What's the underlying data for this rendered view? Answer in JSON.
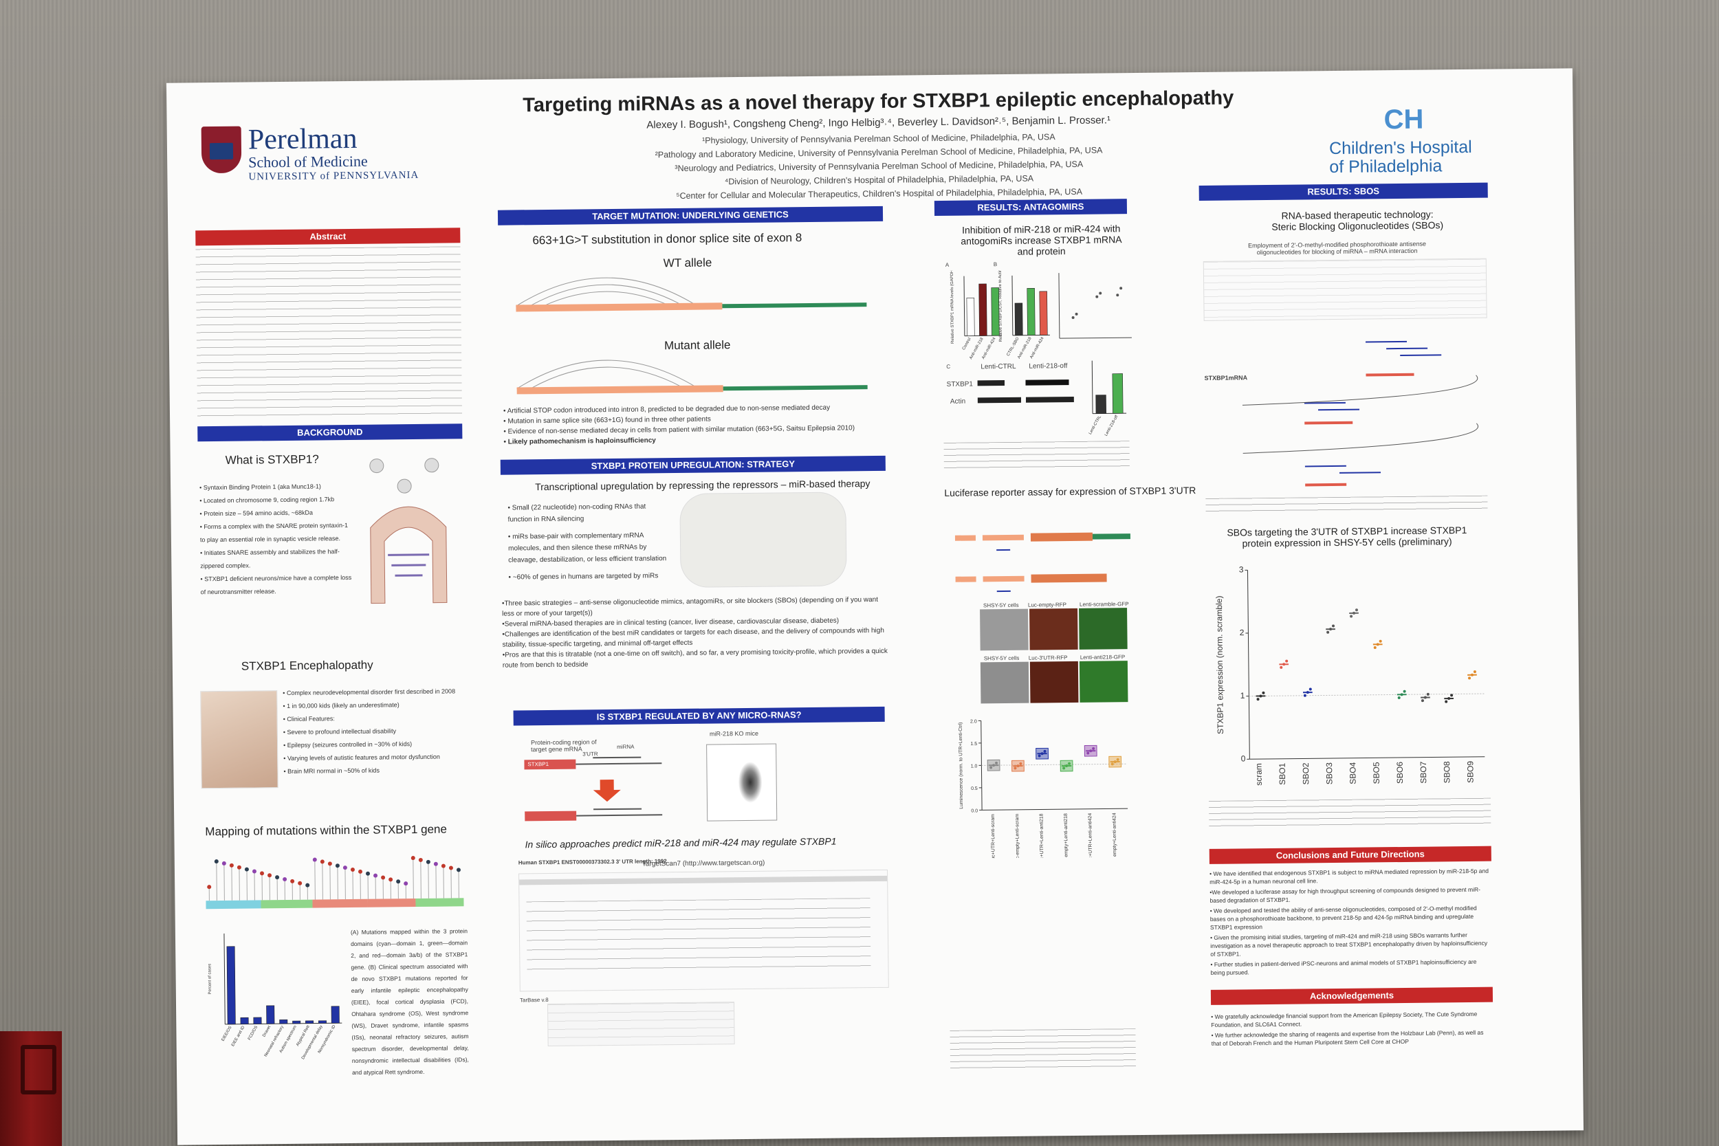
{
  "title": "Targeting miRNAs as a novel therapy for STXBP1 epileptic encephalopathy",
  "authors": "Alexey I. Bogush¹, Congsheng Cheng², Ingo Helbig³˒⁴, Beverley L. Davidson²˒⁵, Benjamin L. Prosser.¹",
  "affiliations": [
    "¹Physiology, University of Pennsylvania Perelman School of Medicine, Philadelphia, PA, USA",
    "²Pathology and Laboratory Medicine, University of Pennsylvania Perelman School of Medicine, Philadelphia, PA, USA",
    "³Neurology and Pediatrics, University of Pennsylvania Perelman School of Medicine, Philadelphia, PA, USA",
    "⁴Division of Neurology, Children's Hospital of Philadelphia, Philadelphia, PA, USA",
    "⁵Center for Cellular and Molecular Therapeutics, Children's Hospital of Philadelphia, Philadelphia, PA, USA"
  ],
  "logos": {
    "penn_name": "Perelman",
    "penn_sub": "School of Medicine",
    "penn_uni": "UNIVERSITY of PENNSYLVANIA",
    "chop_mark": "CH",
    "chop_line1": "Children's Hospital",
    "chop_line2": "of Philadelphia"
  },
  "sections": {
    "abstract": "Abstract",
    "background": "BACKGROUND",
    "target_mutation": "TARGET MUTATION: UNDERLYING GENETICS",
    "protein_upregulation": "STXBP1 PROTEIN UPREGULATION: STRATEGY",
    "regulated": "IS STXBP1 REGULATED BY ANY MICRO-RNAS?",
    "antagomirs": "RESULTS: ANTAGOMIRS",
    "sbos": "RESULTS: SBOS",
    "conclusions": "Conclusions and Future Directions",
    "acknowledgements": "Acknowledgements"
  },
  "headings": {
    "what_is": "What is STXBP1?",
    "encephalopathy": "STXBP1 Encephalopathy",
    "mapping": "Mapping of mutations within the STXBP1 gene",
    "substitution": "663+1G>T substitution in donor splice site of exon 8",
    "wt": "WT allele",
    "mutant": "Mutant allele",
    "transcriptional": "Transcriptional upregulation by repressing the repressors – miR-based therapy",
    "in_silico": "In silico approaches predict miR-218 and miR-424 may regulate STXBP1",
    "inhibition": "Inhibition of miR-218 or miR-424 with antogomiRs increase STXBP1 mRNA and protein",
    "luciferase": "Luciferase reporter assay for expression of STXBP1 3'UTR",
    "rna_based": "RNA-based therapeutic technology: Steric Blocking Oligonucleotides (SBOs)",
    "sbo_targeting": "SBOs targeting the 3'UTR of STXBP1 increase STXBP1 protein expression in SHSY-5Y cells (preliminary)"
  },
  "genetics_bullets": [
    "• Artificial STOP codon introduced into intron 8, predicted to be degraded due to non-sense mediated decay",
    "• Mutation in same splice site (663+1G) found in three other patients",
    "• Evidence of non-sense mediated decay in cells from patient with similar mutation (663+5G, Saitsu Epilepsia 2010)",
    "• Likely pathomechanism is haploinsufficiency"
  ],
  "strategy_bullets": [
    "• Small (22 nucleotide) non-coding RNAs that function in RNA silencing",
    "• miRs base-pair with complementary mRNA molecules, and then silence these mRNAs by cleavage, destabilization, or less efficient translation",
    "• ~60% of genes in humans are targeted by miRs"
  ],
  "strategy_text": [
    "•Three basic strategies – anti-sense oligonucleotide mimics, antagomiRs, or site blockers (SBOs) (depending on if you want less or more of your target(s))",
    "•Several miRNA-based therapies are in clinical testing (cancer, liver disease, cardiovascular disease, diabetes)",
    "•Challenges are identification of the best miR candidates or targets for each disease, and the delivery of compounds with high stability, tissue-specific targeting, and minimal off-target effects",
    "•Pros are that this is titratable (not a one-time on off switch), and so far, a very promising toxicity-profile, which provides a quick route from bench to bedside"
  ],
  "what_is_bullets": [
    "• Syntaxin Binding Protein 1 (aka Munc18-1)",
    "• Located on chromosome 9, coding region 1.7kb",
    "• Protein size – 594 amino acids, ~68kDa",
    "• Forms a complex with the SNARE protein syntaxin-1 to play an essential role in synaptic vesicle release.",
    "• Initiates SNARE assembly and stabilizes the half-zippered complex.",
    "• STXBP1 deficient neurons/mice have a complete loss of neurotransmitter release."
  ],
  "encephalopathy_bullets": [
    "• Complex neurodevelopmental disorder first described in 2008",
    "• 1 in 90,000 kids (likely an underestimate)",
    "• Clinical Features:",
    "• Severe to profound intellectual disability",
    "• Epilepsy (seizures controlled in ~30% of kids)",
    "• Varying levels of autistic features and motor dysfunction",
    "• Brain MRI normal in ~50% of kids"
  ],
  "mapping_text": "(A) Mutations mapped within the 3 protein domains (cyan—domain 1, green—domain 2, and red—domain 3a/b) of the STXBP1 gene. (B) Clinical spectrum associated with de novo STXBP1 mutations reported for early infantile epileptic encephalopathy (EIEE), focal cortical dysplasia (FCD), Ohtahara syndrome (OS), West syndrome (WS), Dravet syndrome, infantile spasms (ISs), neonatal refractory seizures, autism spectrum disorder, developmental delay, nonsyndromic intellectual disabilities (IDs), and atypical Rett syndrome.",
  "conclusions": [
    "• We have identified that endogenous STXBP1 is subject to miRNA mediated repression by miR-218-5p and miR-424-5p in a human neuronal cell line.",
    "•We developed a luciferase assay for high throughput screening of compounds designed to prevent miR-based degradation of STXBP1.",
    "• We developed and tested the ability of anti-sense oligonucleotides, composed of 2'-O-methyl modified bases on a phosphorothioate backbone, to prevent 218-5p and 424-5p miRNA binding and upregulate STXBP1 expression",
    "• Given the promising initial studies, targeting of miR-424 and miR-218 using SBOs warrants further investigation as a novel therapeutic approach to treat STXBP1 encephalopathy driven by haploinsufficiency of STXBP1.",
    "• Further studies in patient-derived iPSC-neurons and animal models of STXBP1 haploinsufficiency are being pursued."
  ],
  "acknowledgements": [
    "• We gratefully acknowledge financial support from the American Epilepsy Society, The Cute Syndrome Foundation, and SLC6A1 Connect.",
    "• We further acknowledge the sharing of reagents and expertise from the Holzbaur Lab (Penn), as well as that of Deborah French and the Human Pluripotent Stem Cell Core at CHOP"
  ],
  "sbo_chart": {
    "ylabel": "STXBP1 expression (norm. scramble)",
    "categories": [
      "scram",
      "SBO1",
      "SBO2",
      "SBO3",
      "SBO4",
      "SBO5",
      "SBO6",
      "SBO7",
      "SBO8",
      "SBO9"
    ],
    "values": [
      1.0,
      1.5,
      1.05,
      2.05,
      2.3,
      1.8,
      1.0,
      0.95,
      0.93,
      1.3
    ],
    "ylim": [
      0,
      3
    ],
    "yticks": [
      "0",
      "1",
      "2",
      "3"
    ]
  },
  "luc_chart": {
    "ylabel": "Luminescence (norm. to UTR+Lenti-Ctrl)",
    "categories": [
      "Luc+UTR+Lenti-scram",
      "Luc-empty+Lenti-scram",
      "Luc+UTR+Lenti-anti218",
      "Luc-empty+Lenti-anti218",
      "Luc+UTR+Lenti-anti424",
      "Luc-empty+Lenti-anti424"
    ],
    "values": [
      1.0,
      0.98,
      1.25,
      0.97,
      1.3,
      1.05
    ],
    "ylim": [
      0,
      2
    ],
    "yticks": [
      "0.0",
      "0.5",
      "1.0",
      "1.5",
      "2.0"
    ]
  },
  "antagomir_bars": {
    "a_ylabel": "Relative STXBP1 mRNA levels (GAPDH)",
    "a_categories": [
      "Control",
      "Anti-miR-218",
      "Anti-miR-424"
    ],
    "a_values": [
      0.95,
      1.3,
      1.2
    ],
    "b_ylabel": "Relative STXBP1/CST, Relative to Actin",
    "b_categories": [
      "CTRL-SBO",
      "Anti-miR-218",
      "Anti-miR-424"
    ],
    "b_values": [
      0.7,
      1.02,
      0.95
    ],
    "c_categories": [
      "Lenti-CTRL",
      "Lenti-218-off"
    ],
    "c_values": [
      0.35,
      0.75
    ],
    "blot_labels": [
      "Lenti-CTRL",
      "Lenti-218-off",
      "STXBP1",
      "Actin"
    ]
  },
  "mapping_chart": {
    "ylabel": "Percent of cases",
    "categories": [
      "EIEE/OS",
      "EIEE and ID",
      "FCD/OS",
      "Dravet",
      "Neonatal refractory",
      "Autism spectrum",
      "Atypical Rett",
      "Developmental delay",
      "Nonsyndromic ID"
    ],
    "values": [
      60,
      5,
      5,
      14,
      3,
      2,
      2,
      2,
      13
    ]
  },
  "misc_labels": {
    "prot_coding": "Protein-coding region of target gene mRNA",
    "stxbp1": "STXBP1",
    "utr": "3'UTR",
    "mirna": "miRNA",
    "ko_mice": "miR-218 KO mice",
    "human_stxbp1": "Human STXBP1  ENST00000373302.3  3' UTR length: 1992",
    "targetscan": "TargetScan7 (http://www.targetscan.org)",
    "tarbase": "TarBase v.8",
    "employment": "Employment of 2'-O-methyl-modified phosphorothioate antisense oligonucleotides for blocking of miRNA – mRNA interaction",
    "stxbp1_mrna": "STXBP1mRNA",
    "shsy_cells": "SHSY-5Y cells",
    "luc_empty_rfp": "Luc-empty-RFP",
    "lenti_scramble_gfp": "Lenti-scramble-GFP",
    "luc_3utr_rfp": "Luc-3'UTR-RFP",
    "lenti_anti218_gfp": "Lenti-anti218-GFP",
    "panel_a": "A",
    "panel_b": "B",
    "panel_c": "C"
  }
}
